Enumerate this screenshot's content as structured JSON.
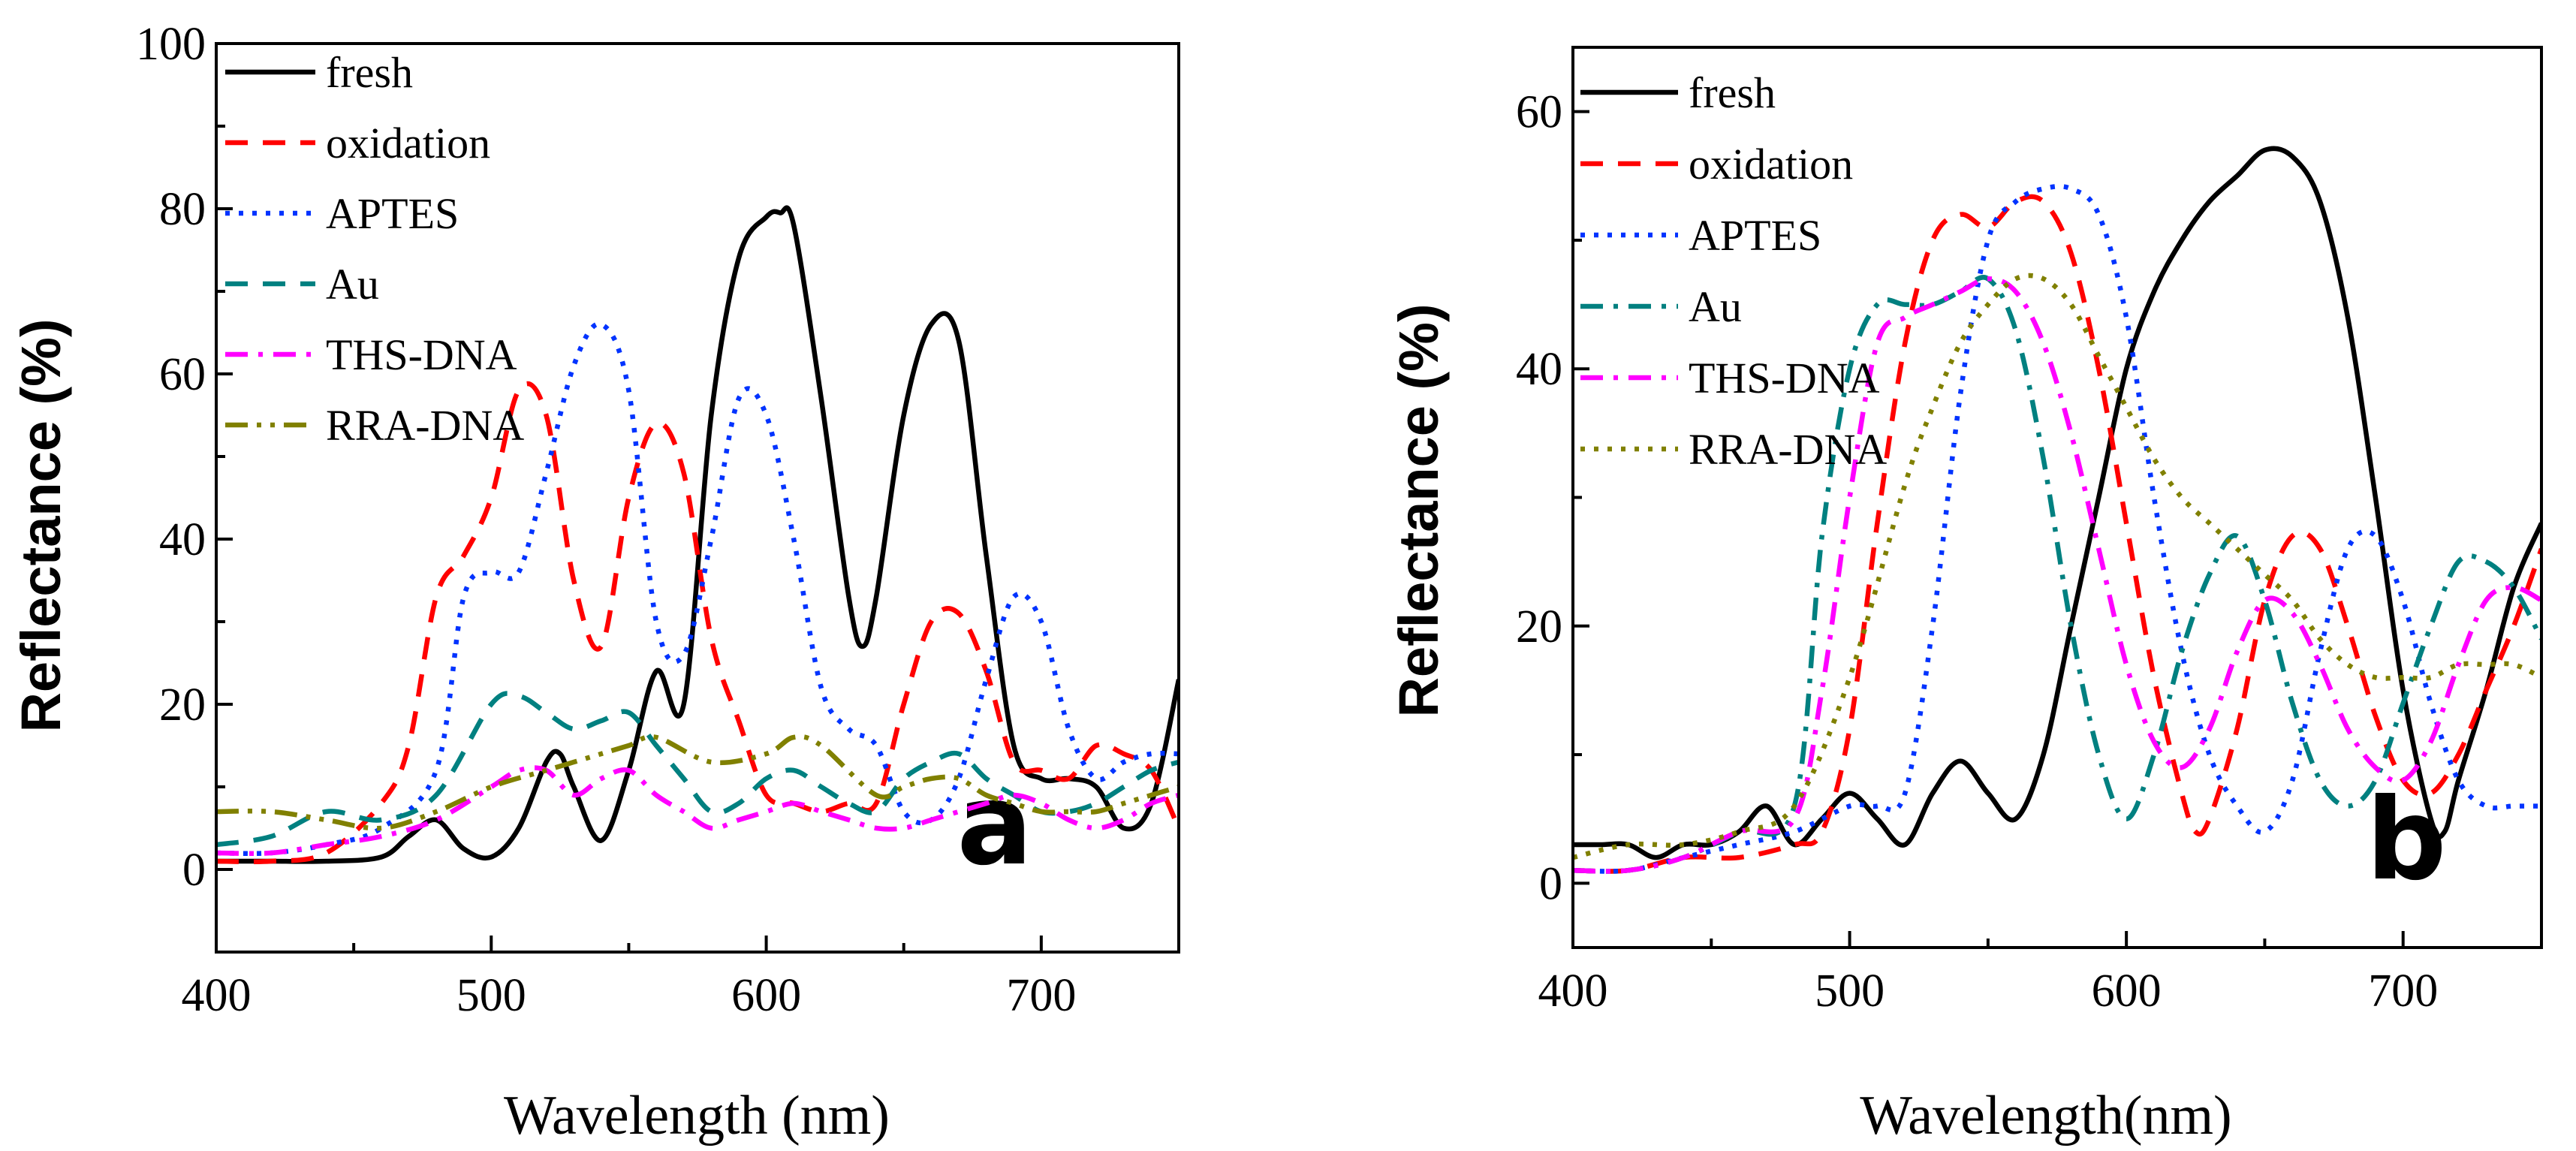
{
  "chart_data": [
    {
      "type": "line",
      "panel_label": "a",
      "xlabel": "Wavelength (nm)",
      "ylabel": "Reflectance (%)",
      "xlim": [
        400,
        750
      ],
      "ylim": [
        -10,
        100
      ],
      "xticks": [
        400,
        500,
        600,
        700
      ],
      "yticks": [
        0,
        20,
        40,
        60,
        80,
        100
      ],
      "legend_position": "top-left",
      "series": [
        {
          "name": "fresh",
          "color": "#000000",
          "style": "solid",
          "x": [
            400,
            420,
            440,
            460,
            470,
            480,
            490,
            500,
            510,
            520,
            525,
            530,
            540,
            550,
            560,
            570,
            580,
            590,
            600,
            605,
            610,
            620,
            630,
            635,
            640,
            650,
            660,
            670,
            680,
            690,
            700,
            710,
            720,
            730,
            740,
            750
          ],
          "y": [
            1,
            1,
            1,
            1.5,
            4,
            6,
            2.5,
            1.5,
            5,
            13,
            14,
            10,
            3.5,
            12,
            24,
            20,
            55,
            74,
            79,
            79.5,
            78,
            57,
            33,
            27,
            33,
            55,
            66,
            64,
            38,
            15,
            11,
            11,
            10,
            5,
            8,
            23
          ]
        },
        {
          "name": "oxidation",
          "color": "#ff0000",
          "style": "dashed",
          "x": [
            400,
            420,
            440,
            460,
            470,
            480,
            490,
            500,
            510,
            520,
            530,
            540,
            550,
            560,
            570,
            580,
            590,
            600,
            610,
            620,
            630,
            640,
            650,
            660,
            670,
            680,
            690,
            700,
            710,
            720,
            730,
            740,
            750
          ],
          "y": [
            1,
            1,
            2,
            8,
            15,
            33,
            38,
            45,
            58,
            55,
            35,
            27,
            45,
            54,
            48,
            28,
            18,
            9,
            8,
            7,
            8,
            8,
            20,
            30,
            31,
            24,
            13,
            12,
            11,
            15,
            14,
            12,
            5
          ]
        },
        {
          "name": "APTES",
          "color": "#0033ff",
          "style": "dotted",
          "x": [
            400,
            420,
            440,
            460,
            480,
            490,
            500,
            510,
            520,
            530,
            540,
            550,
            560,
            570,
            580,
            590,
            600,
            610,
            620,
            630,
            640,
            650,
            660,
            670,
            680,
            690,
            700,
            710,
            720,
            730,
            740,
            750
          ],
          "y": [
            2,
            2,
            3,
            5,
            12,
            33,
            36,
            36,
            48,
            61,
            66,
            58,
            30,
            26,
            40,
            57,
            55,
            40,
            22,
            17,
            15,
            7,
            6,
            11,
            23,
            33,
            30,
            17,
            11,
            13,
            14,
            14
          ]
        },
        {
          "name": "Au",
          "color": "#008080",
          "style": "dashed",
          "x": [
            400,
            420,
            440,
            460,
            480,
            500,
            510,
            520,
            530,
            540,
            550,
            560,
            570,
            580,
            590,
            600,
            610,
            620,
            630,
            640,
            650,
            660,
            670,
            680,
            690,
            700,
            710,
            720,
            730,
            740,
            750
          ],
          "y": [
            3,
            4,
            7,
            6,
            9,
            20,
            21,
            19,
            17,
            18,
            19,
            15,
            11,
            7,
            8,
            11,
            12,
            10,
            8,
            7,
            11,
            13,
            14,
            11,
            9,
            7,
            7,
            8,
            10,
            12,
            13
          ]
        },
        {
          "name": "THS-DNA",
          "color": "#ff00ff",
          "style": "dashdot",
          "x": [
            400,
            420,
            440,
            460,
            480,
            500,
            510,
            520,
            530,
            540,
            550,
            560,
            570,
            580,
            590,
            600,
            610,
            620,
            630,
            640,
            650,
            660,
            670,
            680,
            690,
            700,
            710,
            720,
            730,
            740,
            750
          ],
          "y": [
            2,
            2,
            3,
            4,
            6,
            10,
            12,
            12,
            9,
            11,
            12,
            9,
            7,
            5,
            6,
            7,
            8,
            7,
            6,
            5,
            5,
            6,
            7,
            8,
            9,
            8,
            6,
            5,
            6,
            8,
            9
          ]
        },
        {
          "name": "RRA-DNA",
          "color": "#808000",
          "style": "dashdotdot",
          "x": [
            400,
            420,
            440,
            460,
            480,
            500,
            520,
            540,
            550,
            560,
            580,
            600,
            610,
            620,
            640,
            650,
            660,
            670,
            680,
            690,
            700,
            710,
            720,
            730,
            740,
            750
          ],
          "y": [
            7,
            7,
            6,
            5,
            7,
            10,
            12,
            14,
            15,
            16,
            13,
            14,
            16,
            15,
            9,
            10,
            11,
            11,
            9,
            8,
            7,
            7,
            7,
            8,
            9,
            10
          ]
        }
      ]
    },
    {
      "type": "line",
      "panel_label": "b",
      "xlabel": "Wavelength(nm)",
      "ylabel": "Reflectance (%)",
      "xlim": [
        400,
        750
      ],
      "ylim": [
        -5,
        65
      ],
      "xticks": [
        400,
        500,
        600,
        700
      ],
      "yticks": [
        0,
        20,
        40,
        60
      ],
      "legend_position": "top-left",
      "series": [
        {
          "name": "fresh",
          "color": "#000000",
          "style": "solid",
          "x": [
            400,
            410,
            420,
            430,
            440,
            450,
            460,
            470,
            480,
            490,
            500,
            510,
            520,
            530,
            540,
            550,
            560,
            570,
            580,
            590,
            600,
            610,
            620,
            630,
            640,
            650,
            660,
            670,
            680,
            690,
            700,
            710,
            715,
            720,
            730,
            740,
            750
          ],
          "y": [
            3,
            3,
            3,
            2,
            3,
            3,
            4,
            6,
            3,
            5,
            7,
            5,
            3,
            7,
            9.5,
            7,
            5,
            10,
            20,
            30,
            40,
            46,
            50,
            53,
            55,
            57,
            56.5,
            53,
            44,
            30,
            15,
            5,
            4,
            8,
            15,
            23,
            28
          ]
        },
        {
          "name": "oxidation",
          "color": "#ff0000",
          "style": "dashed",
          "x": [
            400,
            420,
            440,
            460,
            480,
            490,
            500,
            510,
            520,
            530,
            540,
            550,
            560,
            570,
            580,
            590,
            600,
            610,
            620,
            625,
            630,
            640,
            650,
            660,
            670,
            680,
            690,
            700,
            710,
            720,
            730,
            740,
            750
          ],
          "y": [
            1,
            1,
            2,
            2,
            3,
            4,
            12,
            28,
            42,
            50,
            52,
            51,
            53,
            53,
            49,
            40,
            28,
            16,
            7,
            4,
            5,
            12,
            22,
            27,
            26,
            20,
            13,
            8,
            7,
            10,
            15,
            20,
            26
          ]
        },
        {
          "name": "APTES",
          "color": "#0033ff",
          "style": "dotted",
          "x": [
            400,
            420,
            440,
            460,
            480,
            500,
            510,
            520,
            530,
            540,
            550,
            560,
            570,
            580,
            590,
            600,
            610,
            620,
            630,
            640,
            650,
            660,
            670,
            680,
            690,
            700,
            710,
            720,
            730,
            740,
            750
          ],
          "y": [
            1,
            1,
            2,
            3,
            4,
            6,
            6,
            7,
            20,
            38,
            50,
            53,
            54,
            54,
            52,
            44,
            30,
            18,
            10,
            6,
            4,
            8,
            18,
            26,
            27,
            22,
            14,
            8,
            6,
            6,
            6
          ]
        },
        {
          "name": "Au",
          "color": "#008080",
          "style": "dashdot",
          "x": [
            400,
            420,
            440,
            460,
            480,
            490,
            500,
            510,
            520,
            530,
            540,
            550,
            560,
            570,
            580,
            590,
            600,
            610,
            620,
            630,
            640,
            650,
            660,
            670,
            680,
            690,
            700,
            710,
            720,
            730,
            740,
            750
          ],
          "y": [
            1,
            1,
            2,
            4,
            6,
            27,
            40,
            45,
            45,
            45,
            46,
            47,
            43,
            33,
            20,
            10,
            5,
            10,
            18,
            24,
            27,
            22,
            14,
            8,
            6,
            8,
            14,
            20,
            25,
            25,
            23,
            19
          ]
        },
        {
          "name": "THS-DNA",
          "color": "#ff00ff",
          "style": "dashdot",
          "x": [
            400,
            420,
            440,
            460,
            480,
            490,
            500,
            510,
            520,
            530,
            540,
            550,
            560,
            570,
            580,
            590,
            600,
            610,
            620,
            630,
            640,
            650,
            660,
            670,
            680,
            690,
            700,
            710,
            720,
            730,
            740,
            750
          ],
          "y": [
            1,
            1,
            2,
            4,
            5,
            15,
            30,
            42,
            44,
            45,
            46,
            47,
            46,
            42,
            35,
            26,
            17,
            11,
            9,
            12,
            18,
            22,
            21,
            17,
            12,
            9,
            8,
            11,
            17,
            22,
            23,
            22
          ]
        },
        {
          "name": "RRA-DNA",
          "color": "#808000",
          "style": "dotted",
          "x": [
            400,
            420,
            440,
            460,
            480,
            500,
            520,
            530,
            540,
            550,
            560,
            570,
            580,
            590,
            600,
            610,
            620,
            630,
            640,
            650,
            660,
            670,
            680,
            690,
            700,
            710,
            720,
            730,
            740,
            750
          ],
          "y": [
            2,
            3,
            3,
            4,
            6,
            16,
            31,
            37,
            42,
            45,
            47,
            47,
            45,
            41,
            37,
            33,
            30,
            28,
            26,
            24,
            22,
            19,
            17,
            16,
            16,
            16,
            17,
            17,
            17,
            16
          ]
        }
      ]
    }
  ]
}
